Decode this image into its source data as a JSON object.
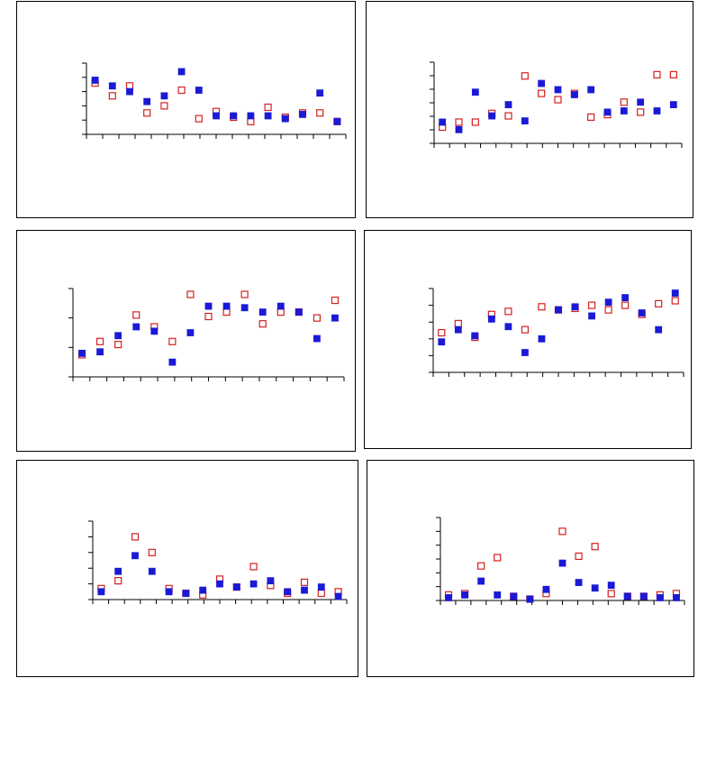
{
  "colors": {
    "series_a": "#1a1ad6",
    "series_b": "#d42020",
    "axis": "#000000"
  },
  "chart_data": [
    {
      "type": "scatter",
      "grid": false,
      "x": [
        1,
        2,
        3,
        4,
        5,
        6,
        7,
        8,
        9,
        10,
        11,
        12,
        13,
        14,
        15
      ],
      "xlim": [
        0.5,
        15.5
      ],
      "ylim": [
        0,
        5
      ],
      "series": [
        {
          "marker": "filled-square",
          "values": [
            3.8,
            3.4,
            3.0,
            2.3,
            2.7,
            4.4,
            3.1,
            1.3,
            1.3,
            1.3,
            1.3,
            1.1,
            1.4,
            2.9,
            0.9
          ]
        },
        {
          "marker": "open-square",
          "values": [
            3.6,
            2.7,
            3.4,
            1.5,
            2.0,
            3.1,
            1.1,
            1.6,
            1.2,
            0.9,
            1.9,
            1.2,
            1.5,
            1.5,
            0.9
          ]
        }
      ]
    },
    {
      "type": "scatter",
      "grid": false,
      "x": [
        1,
        2,
        3,
        4,
        5,
        6,
        7,
        8,
        9,
        10,
        11,
        12,
        13,
        14,
        15
      ],
      "xlim": [
        0.5,
        15.5
      ],
      "ylim": [
        0,
        6.5
      ],
      "series": [
        {
          "marker": "filled-square",
          "values": [
            1.7,
            1.1,
            4.1,
            2.2,
            3.1,
            1.8,
            4.8,
            4.3,
            3.9,
            4.3,
            2.5,
            2.6,
            3.3,
            2.6,
            3.1
          ]
        },
        {
          "marker": "open-square",
          "values": [
            1.3,
            1.7,
            1.7,
            2.4,
            2.2,
            5.4,
            4.0,
            3.5,
            4.0,
            2.1,
            2.3,
            3.3,
            2.5,
            5.5,
            5.5
          ]
        }
      ]
    },
    {
      "type": "scatter",
      "grid": false,
      "x": [
        1,
        2,
        3,
        4,
        5,
        6,
        7,
        8,
        9,
        10,
        11,
        12,
        13,
        14,
        15
      ],
      "xlim": [
        0.5,
        15.5
      ],
      "ylim": [
        0,
        3
      ],
      "series": [
        {
          "marker": "filled-square",
          "values": [
            0.8,
            0.85,
            1.4,
            1.7,
            1.55,
            0.5,
            1.5,
            2.4,
            2.4,
            2.35,
            2.2,
            2.4,
            2.2,
            1.3,
            2.0
          ]
        },
        {
          "marker": "open-square",
          "values": [
            0.75,
            1.2,
            1.1,
            2.1,
            1.7,
            1.2,
            2.8,
            2.05,
            2.2,
            2.8,
            1.8,
            2.2,
            2.2,
            2.0,
            2.6
          ]
        }
      ]
    },
    {
      "type": "scatter",
      "grid": false,
      "x": [
        1,
        2,
        3,
        4,
        5,
        6,
        7,
        8,
        9,
        10,
        11,
        12,
        13,
        14,
        15
      ],
      "xlim": [
        0.5,
        15.5
      ],
      "ylim": [
        0,
        5.5
      ],
      "series": [
        {
          "marker": "filled-square",
          "values": [
            2.0,
            2.8,
            2.4,
            3.5,
            3.0,
            1.3,
            2.2,
            4.1,
            4.3,
            3.7,
            4.6,
            4.9,
            3.9,
            2.8,
            5.2
          ]
        },
        {
          "marker": "open-square",
          "values": [
            2.6,
            3.2,
            2.3,
            3.8,
            4.0,
            2.8,
            4.3,
            4.1,
            4.2,
            4.4,
            4.1,
            4.4,
            3.8,
            4.5,
            4.7
          ]
        }
      ]
    },
    {
      "type": "scatter",
      "grid": false,
      "x": [
        1,
        2,
        3,
        4,
        5,
        6,
        7,
        8,
        9,
        10,
        11,
        12,
        13,
        14,
        15
      ],
      "xlim": [
        0.5,
        15.5
      ],
      "ylim": [
        0,
        5
      ],
      "series": [
        {
          "marker": "filled-square",
          "values": [
            0.5,
            1.8,
            2.8,
            1.8,
            0.5,
            0.4,
            0.6,
            1.0,
            0.8,
            1.0,
            1.2,
            0.5,
            0.6,
            0.8,
            0.2
          ]
        },
        {
          "marker": "open-square",
          "values": [
            0.7,
            1.2,
            4.0,
            3.0,
            0.7,
            0.4,
            0.3,
            1.3,
            0.8,
            2.1,
            0.9,
            0.4,
            1.1,
            0.4,
            0.5
          ]
        }
      ]
    },
    {
      "type": "scatter",
      "grid": false,
      "x": [
        1,
        2,
        3,
        4,
        5,
        6,
        7,
        8,
        9,
        10,
        11,
        12,
        13,
        14,
        15
      ],
      "xlim": [
        0.5,
        15.5
      ],
      "ylim": [
        0,
        6
      ],
      "series": [
        {
          "marker": "filled-square",
          "values": [
            0.2,
            0.4,
            1.4,
            0.4,
            0.3,
            0.1,
            0.8,
            2.7,
            1.3,
            0.9,
            1.1,
            0.3,
            0.3,
            0.2,
            0.2
          ]
        },
        {
          "marker": "open-square",
          "values": [
            0.4,
            0.5,
            2.5,
            3.1,
            0.3,
            0.1,
            0.5,
            5.0,
            3.2,
            3.9,
            0.5,
            0.3,
            0.3,
            0.4,
            0.5
          ]
        }
      ]
    }
  ]
}
